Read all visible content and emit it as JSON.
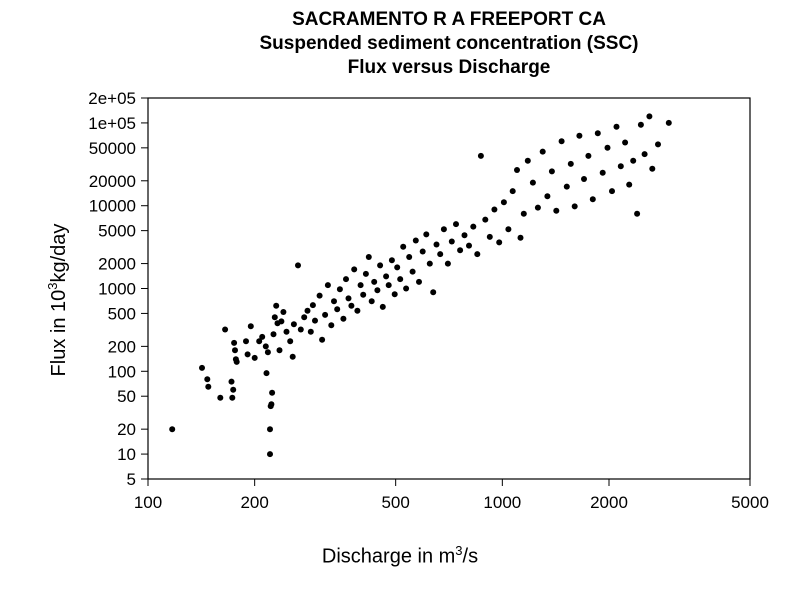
{
  "chart_data": {
    "type": "scatter",
    "title": "SACRAMENTO R A FREEPORT CA",
    "subtitle": "Suspended sediment concentration (SSC)",
    "subtitle2": "Flux versus Discharge",
    "xlabel": {
      "pre": "Discharge in m",
      "sup": "3",
      "post": "/s"
    },
    "ylabel": {
      "pre": "Flux in 10",
      "sup": "3",
      "post": "kg/day"
    },
    "xscale": "log",
    "yscale": "log",
    "xlim": [
      100,
      5000
    ],
    "ylim": [
      5,
      200000
    ],
    "x_ticks": [
      {
        "value": 100,
        "label": "100"
      },
      {
        "value": 200,
        "label": "200"
      },
      {
        "value": 500,
        "label": "500"
      },
      {
        "value": 1000,
        "label": "1000"
      },
      {
        "value": 2000,
        "label": "2000"
      },
      {
        "value": 5000,
        "label": "5000"
      }
    ],
    "y_ticks": [
      {
        "value": 5,
        "label": "5"
      },
      {
        "value": 10,
        "label": "10"
      },
      {
        "value": 20,
        "label": "20"
      },
      {
        "value": 50,
        "label": "50"
      },
      {
        "value": 100,
        "label": "100"
      },
      {
        "value": 200,
        "label": "200"
      },
      {
        "value": 500,
        "label": "500"
      },
      {
        "value": 1000,
        "label": "1000"
      },
      {
        "value": 2000,
        "label": "2000"
      },
      {
        "value": 5000,
        "label": "5000"
      },
      {
        "value": 10000,
        "label": "10000"
      },
      {
        "value": 20000,
        "label": "20000"
      },
      {
        "value": 50000,
        "label": "50000"
      },
      {
        "value": 100000,
        "label": "1e+05"
      },
      {
        "value": 200000,
        "label": "2e+05"
      }
    ],
    "grid": false,
    "marker_color": "#000000",
    "points": [
      [
        117,
        20
      ],
      [
        142,
        110
      ],
      [
        147,
        80
      ],
      [
        148,
        65
      ],
      [
        160,
        48
      ],
      [
        165,
        320
      ],
      [
        172,
        75
      ],
      [
        173,
        48
      ],
      [
        174,
        60
      ],
      [
        175,
        220
      ],
      [
        176,
        180
      ],
      [
        177,
        140
      ],
      [
        178,
        130
      ],
      [
        189,
        230
      ],
      [
        191,
        160
      ],
      [
        195,
        350
      ],
      [
        200,
        145
      ],
      [
        206,
        230
      ],
      [
        210,
        260
      ],
      [
        215,
        200
      ],
      [
        216,
        95
      ],
      [
        218,
        170
      ],
      [
        221,
        10
      ],
      [
        221,
        20
      ],
      [
        222,
        38
      ],
      [
        223,
        40
      ],
      [
        224,
        55
      ],
      [
        226,
        280
      ],
      [
        228,
        450
      ],
      [
        230,
        620
      ],
      [
        232,
        380
      ],
      [
        235,
        180
      ],
      [
        238,
        400
      ],
      [
        241,
        520
      ],
      [
        246,
        300
      ],
      [
        252,
        230
      ],
      [
        256,
        150
      ],
      [
        258,
        370
      ],
      [
        265,
        1900
      ],
      [
        270,
        320
      ],
      [
        276,
        450
      ],
      [
        282,
        540
      ],
      [
        288,
        300
      ],
      [
        292,
        630
      ],
      [
        296,
        410
      ],
      [
        305,
        820
      ],
      [
        310,
        240
      ],
      [
        316,
        480
      ],
      [
        322,
        1100
      ],
      [
        329,
        360
      ],
      [
        335,
        700
      ],
      [
        342,
        560
      ],
      [
        348,
        980
      ],
      [
        356,
        430
      ],
      [
        362,
        1300
      ],
      [
        368,
        760
      ],
      [
        375,
        620
      ],
      [
        382,
        1700
      ],
      [
        390,
        540
      ],
      [
        398,
        1100
      ],
      [
        405,
        840
      ],
      [
        412,
        1500
      ],
      [
        420,
        2400
      ],
      [
        428,
        700
      ],
      [
        435,
        1200
      ],
      [
        444,
        950
      ],
      [
        452,
        1900
      ],
      [
        460,
        600
      ],
      [
        470,
        1400
      ],
      [
        478,
        1100
      ],
      [
        488,
        2200
      ],
      [
        497,
        850
      ],
      [
        505,
        1800
      ],
      [
        515,
        1300
      ],
      [
        525,
        3200
      ],
      [
        535,
        1000
      ],
      [
        546,
        2400
      ],
      [
        558,
        1600
      ],
      [
        570,
        3800
      ],
      [
        582,
        1200
      ],
      [
        596,
        2800
      ],
      [
        610,
        4500
      ],
      [
        624,
        2000
      ],
      [
        638,
        900
      ],
      [
        652,
        3400
      ],
      [
        668,
        2600
      ],
      [
        684,
        5200
      ],
      [
        702,
        2000
      ],
      [
        720,
        3700
      ],
      [
        740,
        6000
      ],
      [
        760,
        2900
      ],
      [
        782,
        4400
      ],
      [
        805,
        3300
      ],
      [
        828,
        5600
      ],
      [
        850,
        2600
      ],
      [
        870,
        40000
      ],
      [
        895,
        6800
      ],
      [
        922,
        4200
      ],
      [
        950,
        9000
      ],
      [
        980,
        3600
      ],
      [
        1010,
        11000
      ],
      [
        1040,
        5200
      ],
      [
        1070,
        15000
      ],
      [
        1100,
        27000
      ],
      [
        1125,
        4100
      ],
      [
        1150,
        8000
      ],
      [
        1180,
        35000
      ],
      [
        1220,
        19000
      ],
      [
        1260,
        9500
      ],
      [
        1300,
        45000
      ],
      [
        1340,
        13000
      ],
      [
        1380,
        26000
      ],
      [
        1420,
        8700
      ],
      [
        1470,
        60000
      ],
      [
        1520,
        17000
      ],
      [
        1560,
        32000
      ],
      [
        1600,
        9800
      ],
      [
        1650,
        70000
      ],
      [
        1700,
        21000
      ],
      [
        1750,
        40000
      ],
      [
        1800,
        12000
      ],
      [
        1860,
        75000
      ],
      [
        1920,
        25000
      ],
      [
        1980,
        50000
      ],
      [
        2040,
        15000
      ],
      [
        2100,
        90000
      ],
      [
        2160,
        30000
      ],
      [
        2220,
        58000
      ],
      [
        2280,
        18000
      ],
      [
        2340,
        35000
      ],
      [
        2400,
        8000
      ],
      [
        2460,
        95000
      ],
      [
        2520,
        42000
      ],
      [
        2600,
        120000
      ],
      [
        2650,
        28000
      ],
      [
        2750,
        55000
      ],
      [
        2950,
        100000
      ]
    ]
  }
}
